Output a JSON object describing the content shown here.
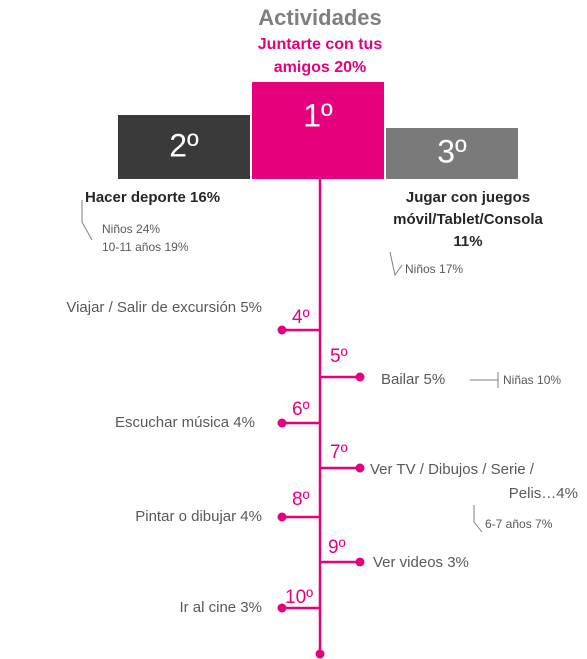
{
  "title": "Actividades",
  "podium": [
    {
      "rank": "1º",
      "label": [
        "Juntarte con tus",
        "amigos 20%"
      ]
    },
    {
      "rank": "2º",
      "label": [
        "Hacer deporte 16%"
      ],
      "notes": [
        "Niños 24%",
        "10-11 años 19%"
      ]
    },
    {
      "rank": "3º",
      "label": [
        "Jugar con juegos",
        "móvil/Tablet/Consola",
        "11%"
      ],
      "notes": [
        "Niños 17%"
      ]
    }
  ],
  "ranking": [
    {
      "rank": "4º",
      "label": [
        "Viajar / Salir de excursión 5%"
      ]
    },
    {
      "rank": "5º",
      "label": [
        "Bailar 5%"
      ],
      "notes": [
        "Niñas 10%"
      ]
    },
    {
      "rank": "6º",
      "label": [
        "Escuchar música 4%"
      ]
    },
    {
      "rank": "7º",
      "label": [
        "Ver TV / Dibujos / Serie /",
        "Pelis…4%"
      ],
      "notes": [
        "6-7 años 7%"
      ]
    },
    {
      "rank": "8º",
      "label": [
        "Pintar o dibujar 4%"
      ]
    },
    {
      "rank": "9º",
      "label": [
        "Ver videos 3%"
      ]
    },
    {
      "rank": "10º",
      "label": [
        "Ir al cine 3%"
      ]
    }
  ]
}
